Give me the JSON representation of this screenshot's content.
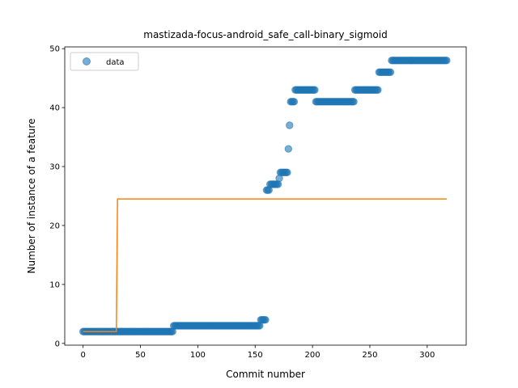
{
  "chart_data": {
    "type": "scatter",
    "title": "mastizada-focus-android_safe_call-binary_sigmoid",
    "xlabel": "Commit number",
    "ylabel": "Number of instance of a feature",
    "xlim": [
      -16,
      334
    ],
    "ylim": [
      -0.3,
      50.3
    ],
    "xticks": [
      0,
      50,
      100,
      150,
      200,
      250,
      300
    ],
    "yticks": [
      0,
      10,
      20,
      30,
      40,
      50
    ],
    "grid": false,
    "legend": {
      "placement": "top-left",
      "entries": [
        "data"
      ]
    },
    "colors": {
      "points": "#1f77b4",
      "fit": "#ff7f0e"
    },
    "series": [
      {
        "name": "data",
        "kind": "scatter",
        "runs": [
          {
            "x_start": 0,
            "x_end": 78,
            "y": 2
          },
          {
            "x_start": 79,
            "x_end": 154,
            "y": 3
          },
          {
            "x_start": 155,
            "x_end": 159,
            "y": 4
          },
          {
            "x_start": 160,
            "x_end": 162,
            "y": 26
          },
          {
            "x_start": 163,
            "x_end": 170,
            "y": 27
          },
          {
            "x_start": 171,
            "x_end": 171,
            "y": 28
          },
          {
            "x_start": 172,
            "x_end": 178,
            "y": 29
          },
          {
            "x_start": 179,
            "x_end": 179,
            "y": 33
          },
          {
            "x_start": 180,
            "x_end": 180,
            "y": 37
          },
          {
            "x_start": 181,
            "x_end": 184,
            "y": 41
          },
          {
            "x_start": 185,
            "x_end": 202,
            "y": 43
          },
          {
            "x_start": 203,
            "x_end": 236,
            "y": 41
          },
          {
            "x_start": 237,
            "x_end": 257,
            "y": 43
          },
          {
            "x_start": 258,
            "x_end": 268,
            "y": 46
          },
          {
            "x_start": 269,
            "x_end": 317,
            "y": 48
          }
        ]
      },
      {
        "kind": "line",
        "points": [
          [
            0,
            2
          ],
          [
            29,
            2
          ],
          [
            30,
            24.5
          ],
          [
            317,
            24.5
          ]
        ]
      }
    ]
  }
}
